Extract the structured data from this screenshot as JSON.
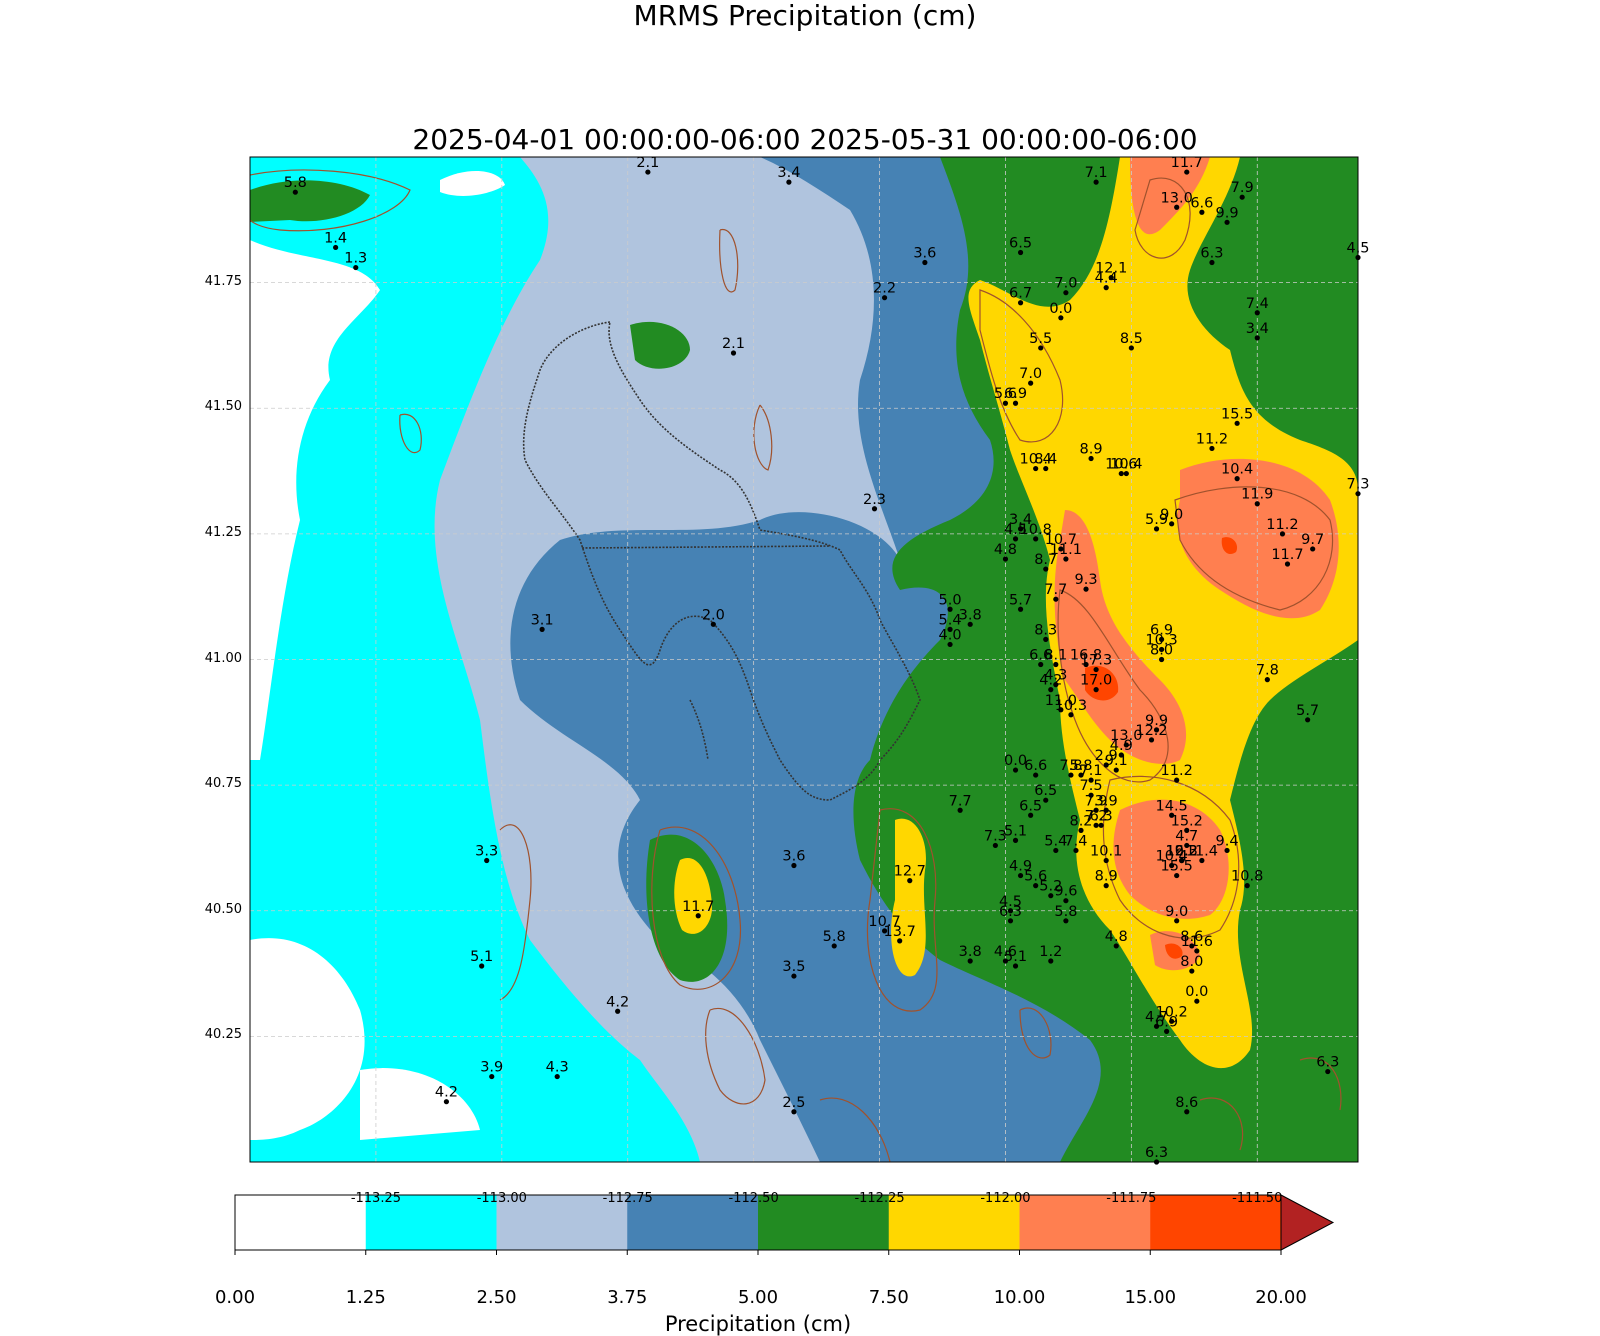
{
  "title": {
    "line1": "MRMS Precipitation (cm)",
    "line2": "2025-04-01 00:00:00-06:00 2025-05-31 00:00:00-06:00"
  },
  "axes": {
    "lon_range": [
      -113.5,
      -111.3
    ],
    "lat_range": [
      40.0,
      42.0
    ],
    "x_ticks": [
      "-113.25",
      "-113.00",
      "-112.75",
      "-112.50",
      "-112.25",
      "-112.00",
      "-111.75",
      "-111.50"
    ],
    "y_ticks": [
      "41.75",
      "41.50",
      "41.25",
      "41.00",
      "40.75",
      "40.50",
      "40.25"
    ],
    "grid": "dashed"
  },
  "colorbar": {
    "label": "Precipitation (cm)",
    "ticks": [
      "0.00",
      "1.25",
      "2.50",
      "3.75",
      "5.00",
      "7.50",
      "10.00",
      "15.00",
      "20.00"
    ],
    "colors": [
      "#ffffff",
      "#00ffff",
      "#b0c4de",
      "#4682b4",
      "#228b22",
      "#ffd700",
      "#ff7f50",
      "#ff4500",
      "#b22222"
    ],
    "extend": "max"
  },
  "stations": [
    {
      "lon": -113.41,
      "lat": 41.93,
      "v": "5.8"
    },
    {
      "lon": -113.33,
      "lat": 41.82,
      "v": "1.4"
    },
    {
      "lon": -113.29,
      "lat": 41.78,
      "v": "1.3"
    },
    {
      "lon": -112.71,
      "lat": 41.97,
      "v": "2.1"
    },
    {
      "lon": -112.43,
      "lat": 41.95,
      "v": "3.4"
    },
    {
      "lon": -112.16,
      "lat": 41.79,
      "v": "3.6"
    },
    {
      "lon": -112.24,
      "lat": 41.72,
      "v": "2.2"
    },
    {
      "lon": -112.54,
      "lat": 41.61,
      "v": "2.1"
    },
    {
      "lon": -112.26,
      "lat": 41.3,
      "v": "2.3"
    },
    {
      "lon": -112.92,
      "lat": 41.06,
      "v": "3.1"
    },
    {
      "lon": -112.58,
      "lat": 41.07,
      "v": "2.0"
    },
    {
      "lon": -113.03,
      "lat": 40.6,
      "v": "3.3"
    },
    {
      "lon": -112.61,
      "lat": 40.49,
      "v": "11.7"
    },
    {
      "lon": -112.42,
      "lat": 40.59,
      "v": "3.6"
    },
    {
      "lon": -113.04,
      "lat": 40.39,
      "v": "5.1"
    },
    {
      "lon": -112.77,
      "lat": 40.3,
      "v": "4.2"
    },
    {
      "lon": -112.42,
      "lat": 40.37,
      "v": "3.5"
    },
    {
      "lon": -113.02,
      "lat": 40.17,
      "v": "3.9"
    },
    {
      "lon": -112.89,
      "lat": 40.17,
      "v": "4.3"
    },
    {
      "lon": -113.11,
      "lat": 40.12,
      "v": "4.2"
    },
    {
      "lon": -112.42,
      "lat": 40.1,
      "v": "2.5"
    },
    {
      "lon": -112.34,
      "lat": 40.43,
      "v": "5.8"
    },
    {
      "lon": -112.24,
      "lat": 40.46,
      "v": "10.7"
    },
    {
      "lon": -112.21,
      "lat": 40.44,
      "v": "13.7"
    },
    {
      "lon": -112.19,
      "lat": 40.56,
      "v": "12.7"
    },
    {
      "lon": -112.11,
      "lat": 41.1,
      "v": "5.0"
    },
    {
      "lon": -112.11,
      "lat": 41.06,
      "v": "5.4"
    },
    {
      "lon": -112.07,
      "lat": 41.07,
      "v": "3.8"
    },
    {
      "lon": -112.11,
      "lat": 41.03,
      "v": "4.0"
    },
    {
      "lon": -112.09,
      "lat": 40.7,
      "v": "7.7"
    },
    {
      "lon": -112.02,
      "lat": 40.63,
      "v": "7.3"
    },
    {
      "lon": -111.98,
      "lat": 40.64,
      "v": "5.1"
    },
    {
      "lon": -111.95,
      "lat": 40.69,
      "v": "6.5"
    },
    {
      "lon": -111.99,
      "lat": 40.48,
      "v": "6.3"
    },
    {
      "lon": -111.99,
      "lat": 40.5,
      "v": "4.5"
    },
    {
      "lon": -111.97,
      "lat": 40.57,
      "v": "4.9"
    },
    {
      "lon": -111.94,
      "lat": 40.55,
      "v": "5.6"
    },
    {
      "lon": -111.91,
      "lat": 40.53,
      "v": "5.2"
    },
    {
      "lon": -111.88,
      "lat": 40.52,
      "v": "9.6"
    },
    {
      "lon": -111.88,
      "lat": 40.48,
      "v": "5.8"
    },
    {
      "lon": -112.07,
      "lat": 40.4,
      "v": "3.8"
    },
    {
      "lon": -112.0,
      "lat": 40.4,
      "v": "4.6"
    },
    {
      "lon": -111.98,
      "lat": 40.39,
      "v": "5.1"
    },
    {
      "lon": -111.91,
      "lat": 40.4,
      "v": "1.2"
    },
    {
      "lon": -111.78,
      "lat": 40.43,
      "v": "4.8"
    },
    {
      "lon": -111.97,
      "lat": 41.81,
      "v": "6.5"
    },
    {
      "lon": -111.97,
      "lat": 41.71,
      "v": "6.7"
    },
    {
      "lon": -111.88,
      "lat": 41.73,
      "v": "7.0"
    },
    {
      "lon": -111.89,
      "lat": 41.68,
      "v": "0.0"
    },
    {
      "lon": -111.8,
      "lat": 41.74,
      "v": "4.4"
    },
    {
      "lon": -111.79,
      "lat": 41.76,
      "v": "12.1"
    },
    {
      "lon": -111.82,
      "lat": 41.95,
      "v": "7.1"
    },
    {
      "lon": -111.64,
      "lat": 41.97,
      "v": "11.7"
    },
    {
      "lon": -111.66,
      "lat": 41.9,
      "v": "13.0"
    },
    {
      "lon": -111.61,
      "lat": 41.89,
      "v": "6.6"
    },
    {
      "lon": -111.56,
      "lat": 41.87,
      "v": "9.9"
    },
    {
      "lon": -111.53,
      "lat": 41.92,
      "v": "7.9"
    },
    {
      "lon": -111.59,
      "lat": 41.79,
      "v": "6.3"
    },
    {
      "lon": -111.3,
      "lat": 41.8,
      "v": "4.5"
    },
    {
      "lon": -111.5,
      "lat": 41.69,
      "v": "7.4"
    },
    {
      "lon": -111.5,
      "lat": 41.64,
      "v": "3.4"
    },
    {
      "lon": -111.75,
      "lat": 41.62,
      "v": "8.5"
    },
    {
      "lon": -111.93,
      "lat": 41.62,
      "v": "5.5"
    },
    {
      "lon": -111.95,
      "lat": 41.55,
      "v": "7.0"
    },
    {
      "lon": -112.0,
      "lat": 41.51,
      "v": "5.6"
    },
    {
      "lon": -111.98,
      "lat": 41.51,
      "v": "6.9"
    },
    {
      "lon": -111.54,
      "lat": 41.47,
      "v": "15.5"
    },
    {
      "lon": -111.59,
      "lat": 41.42,
      "v": "11.2"
    },
    {
      "lon": -111.83,
      "lat": 41.4,
      "v": "8.9"
    },
    {
      "lon": -111.94,
      "lat": 41.38,
      "v": "10.4"
    },
    {
      "lon": -111.92,
      "lat": 41.38,
      "v": "8.4"
    },
    {
      "lon": -111.77,
      "lat": 41.37,
      "v": "10.6"
    },
    {
      "lon": -111.76,
      "lat": 41.37,
      "v": "10.4"
    },
    {
      "lon": -111.54,
      "lat": 41.36,
      "v": "10.4"
    },
    {
      "lon": -111.5,
      "lat": 41.31,
      "v": "11.9"
    },
    {
      "lon": -111.3,
      "lat": 41.33,
      "v": "7.3"
    },
    {
      "lon": -111.7,
      "lat": 41.26,
      "v": "5.9"
    },
    {
      "lon": -111.67,
      "lat": 41.27,
      "v": "9.0"
    },
    {
      "lon": -111.45,
      "lat": 41.25,
      "v": "11.2"
    },
    {
      "lon": -111.39,
      "lat": 41.22,
      "v": "9.7"
    },
    {
      "lon": -111.44,
      "lat": 41.19,
      "v": "11.7"
    },
    {
      "lon": -111.97,
      "lat": 41.26,
      "v": "3.4"
    },
    {
      "lon": -111.98,
      "lat": 41.24,
      "v": "4.5"
    },
    {
      "lon": -111.94,
      "lat": 41.24,
      "v": "10.8"
    },
    {
      "lon": -111.89,
      "lat": 41.22,
      "v": "10.7"
    },
    {
      "lon": -111.88,
      "lat": 41.2,
      "v": "11.1"
    },
    {
      "lon": -112.0,
      "lat": 41.2,
      "v": "4.8"
    },
    {
      "lon": -111.92,
      "lat": 41.18,
      "v": "8.7"
    },
    {
      "lon": -111.84,
      "lat": 41.14,
      "v": "9.3"
    },
    {
      "lon": -111.9,
      "lat": 41.12,
      "v": "7.7"
    },
    {
      "lon": -111.97,
      "lat": 41.1,
      "v": "5.7"
    },
    {
      "lon": -111.92,
      "lat": 41.04,
      "v": "8.3"
    },
    {
      "lon": -111.69,
      "lat": 41.04,
      "v": "6.9"
    },
    {
      "lon": -111.69,
      "lat": 41.02,
      "v": "10.3"
    },
    {
      "lon": -111.69,
      "lat": 41.0,
      "v": "8.0"
    },
    {
      "lon": -111.93,
      "lat": 40.99,
      "v": "6.6"
    },
    {
      "lon": -111.9,
      "lat": 40.99,
      "v": "8.1"
    },
    {
      "lon": -111.84,
      "lat": 40.99,
      "v": "16.8"
    },
    {
      "lon": -111.82,
      "lat": 40.98,
      "v": "17.3"
    },
    {
      "lon": -111.82,
      "lat": 40.94,
      "v": "17.0"
    },
    {
      "lon": -111.9,
      "lat": 40.95,
      "v": "4.3"
    },
    {
      "lon": -111.91,
      "lat": 40.94,
      "v": "4.2"
    },
    {
      "lon": -111.89,
      "lat": 40.9,
      "v": "11.0"
    },
    {
      "lon": -111.87,
      "lat": 40.89,
      "v": "10.3"
    },
    {
      "lon": -111.48,
      "lat": 40.96,
      "v": "7.8"
    },
    {
      "lon": -111.4,
      "lat": 40.88,
      "v": "5.7"
    },
    {
      "lon": -111.7,
      "lat": 40.86,
      "v": "9.9"
    },
    {
      "lon": -111.71,
      "lat": 40.84,
      "v": "12.2"
    },
    {
      "lon": -111.76,
      "lat": 40.83,
      "v": "13.0"
    },
    {
      "lon": -111.77,
      "lat": 40.81,
      "v": "4.9"
    },
    {
      "lon": -111.78,
      "lat": 40.78,
      "v": "9.1"
    },
    {
      "lon": -111.8,
      "lat": 40.79,
      "v": "2.9"
    },
    {
      "lon": -111.98,
      "lat": 40.78,
      "v": "0.0"
    },
    {
      "lon": -111.94,
      "lat": 40.77,
      "v": "6.6"
    },
    {
      "lon": -111.87,
      "lat": 40.77,
      "v": "7.8"
    },
    {
      "lon": -111.85,
      "lat": 40.77,
      "v": "5.8"
    },
    {
      "lon": -111.83,
      "lat": 40.76,
      "v": "7.1"
    },
    {
      "lon": -111.83,
      "lat": 40.73,
      "v": "7.5"
    },
    {
      "lon": -111.92,
      "lat": 40.72,
      "v": "6.5"
    },
    {
      "lon": -111.66,
      "lat": 40.76,
      "v": "11.2"
    },
    {
      "lon": -111.67,
      "lat": 40.69,
      "v": "14.5"
    },
    {
      "lon": -111.82,
      "lat": 40.7,
      "v": "7.9"
    },
    {
      "lon": -111.8,
      "lat": 40.7,
      "v": "3.9"
    },
    {
      "lon": -111.82,
      "lat": 40.67,
      "v": "7.2"
    },
    {
      "lon": -111.81,
      "lat": 40.67,
      "v": "6.3"
    },
    {
      "lon": -111.85,
      "lat": 40.66,
      "v": "8.2"
    },
    {
      "lon": -111.64,
      "lat": 40.66,
      "v": "15.2"
    },
    {
      "lon": -111.64,
      "lat": 40.63,
      "v": "4.7"
    },
    {
      "lon": -111.86,
      "lat": 40.62,
      "v": "7.4"
    },
    {
      "lon": -111.9,
      "lat": 40.62,
      "v": "5.4"
    },
    {
      "lon": -111.56,
      "lat": 40.62,
      "v": "9.4"
    },
    {
      "lon": -111.65,
      "lat": 40.6,
      "v": "16.2"
    },
    {
      "lon": -111.65,
      "lat": 40.6,
      "v": "19.3"
    },
    {
      "lon": -111.65,
      "lat": 40.6,
      "v": "12.2"
    },
    {
      "lon": -111.61,
      "lat": 40.6,
      "v": "11.4"
    },
    {
      "lon": -111.67,
      "lat": 40.59,
      "v": "10.4"
    },
    {
      "lon": -111.8,
      "lat": 40.6,
      "v": "10.1"
    },
    {
      "lon": -111.66,
      "lat": 40.57,
      "v": "15.5"
    },
    {
      "lon": -111.8,
      "lat": 40.55,
      "v": "8.9"
    },
    {
      "lon": -111.52,
      "lat": 40.55,
      "v": "10.8"
    },
    {
      "lon": -111.66,
      "lat": 40.48,
      "v": "9.0"
    },
    {
      "lon": -111.63,
      "lat": 40.43,
      "v": "8.6"
    },
    {
      "lon": -111.62,
      "lat": 40.42,
      "v": "11.6"
    },
    {
      "lon": -111.63,
      "lat": 40.38,
      "v": "8.0"
    },
    {
      "lon": -111.62,
      "lat": 40.32,
      "v": "0.0"
    },
    {
      "lon": -111.67,
      "lat": 40.28,
      "v": "10.2"
    },
    {
      "lon": -111.7,
      "lat": 40.27,
      "v": "4.7"
    },
    {
      "lon": -111.68,
      "lat": 40.26,
      "v": "6.9"
    },
    {
      "lon": -111.36,
      "lat": 40.18,
      "v": "6.3"
    },
    {
      "lon": -111.64,
      "lat": 40.1,
      "v": "8.6"
    },
    {
      "lon": -111.7,
      "lat": 40.0,
      "v": "6.3"
    }
  ]
}
